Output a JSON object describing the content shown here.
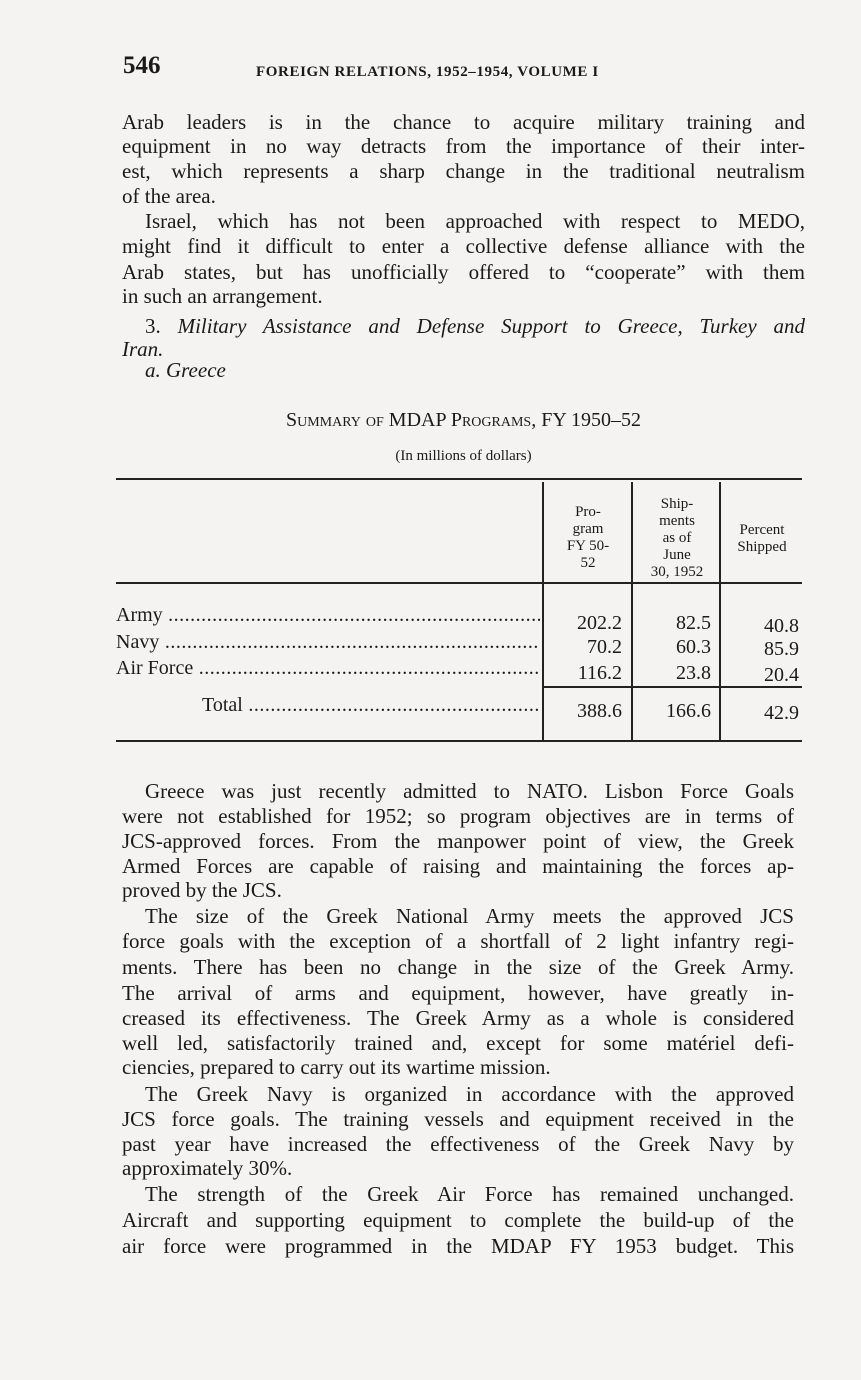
{
  "header": {
    "page_number": "546",
    "running_head": "Foreign Relations, 1952–1954, Volume I"
  },
  "p1": [
    "Arab leaders is in the chance to acquire military training and",
    "equipment in no way detracts from the importance of their inter-",
    "est, which represents a sharp change in the traditional neutralism",
    "of the area."
  ],
  "p2": [
    "Israel, which has not been approached with respect to MEDO,",
    "might find it difficult to enter a collective defense alliance with the",
    "Arab states, but has unofficially offered to “cooperate” with them",
    "in such an arrangement."
  ],
  "p3": {
    "number": "3.",
    "heading": "Military Assistance and Defense Support to Greece, Turkey and",
    "heading_cont": "Iran.",
    "sub": "a. Greece"
  },
  "table": {
    "title": "Summary of MDAP Programs, FY 1950–52",
    "subtitle": "(In millions of dollars)",
    "columns": [
      "Pro-\ngram\nFY 50-\n52",
      "Ship-\nments\nas of\nJune\n30, 1952",
      "Percent\nShipped"
    ],
    "rows": [
      {
        "label": "Army",
        "program": "202.2",
        "shipments": "82.5",
        "percent": "40.8"
      },
      {
        "label": "Navy",
        "program": "70.2",
        "shipments": "60.3",
        "percent": "85.9"
      },
      {
        "label": "Air Force",
        "program": "116.2",
        "shipments": "23.8",
        "percent": "20.4"
      }
    ],
    "total": {
      "label": "Total",
      "program": "388.6",
      "shipments": "166.6",
      "percent": "42.9"
    }
  },
  "p4": [
    "Greece was just recently admitted to NATO. Lisbon Force Goals",
    "were not established for 1952; so program objectives are in terms of",
    "JCS-approved forces. From the manpower point of view, the Greek",
    "Armed Forces are capable of raising and maintaining the forces ap-",
    "proved by the JCS."
  ],
  "p5": [
    "The size of the Greek National Army meets the approved JCS",
    "force goals with the exception of a shortfall of 2 light infantry regi-",
    "ments. There has been no change in the size of the Greek Army.",
    "The arrival of arms and equipment, however, have greatly in-",
    "creased its effectiveness. The Greek Army as a whole is considered",
    "well led, satisfactorily trained and, except for some matériel defi-",
    "ciencies, prepared to carry out its wartime mission."
  ],
  "p6": [
    "The Greek Navy is organized in accordance with the approved",
    "JCS force goals. The training vessels and equipment received in the",
    "past year have increased the effectiveness of the Greek Navy by",
    "approximately 30%."
  ],
  "p7": [
    "The strength of the Greek Air Force has remained unchanged.",
    "Aircraft and supporting equipment to complete the build-up of the",
    "air force were programmed in the MDAP FY 1953 budget. This"
  ]
}
